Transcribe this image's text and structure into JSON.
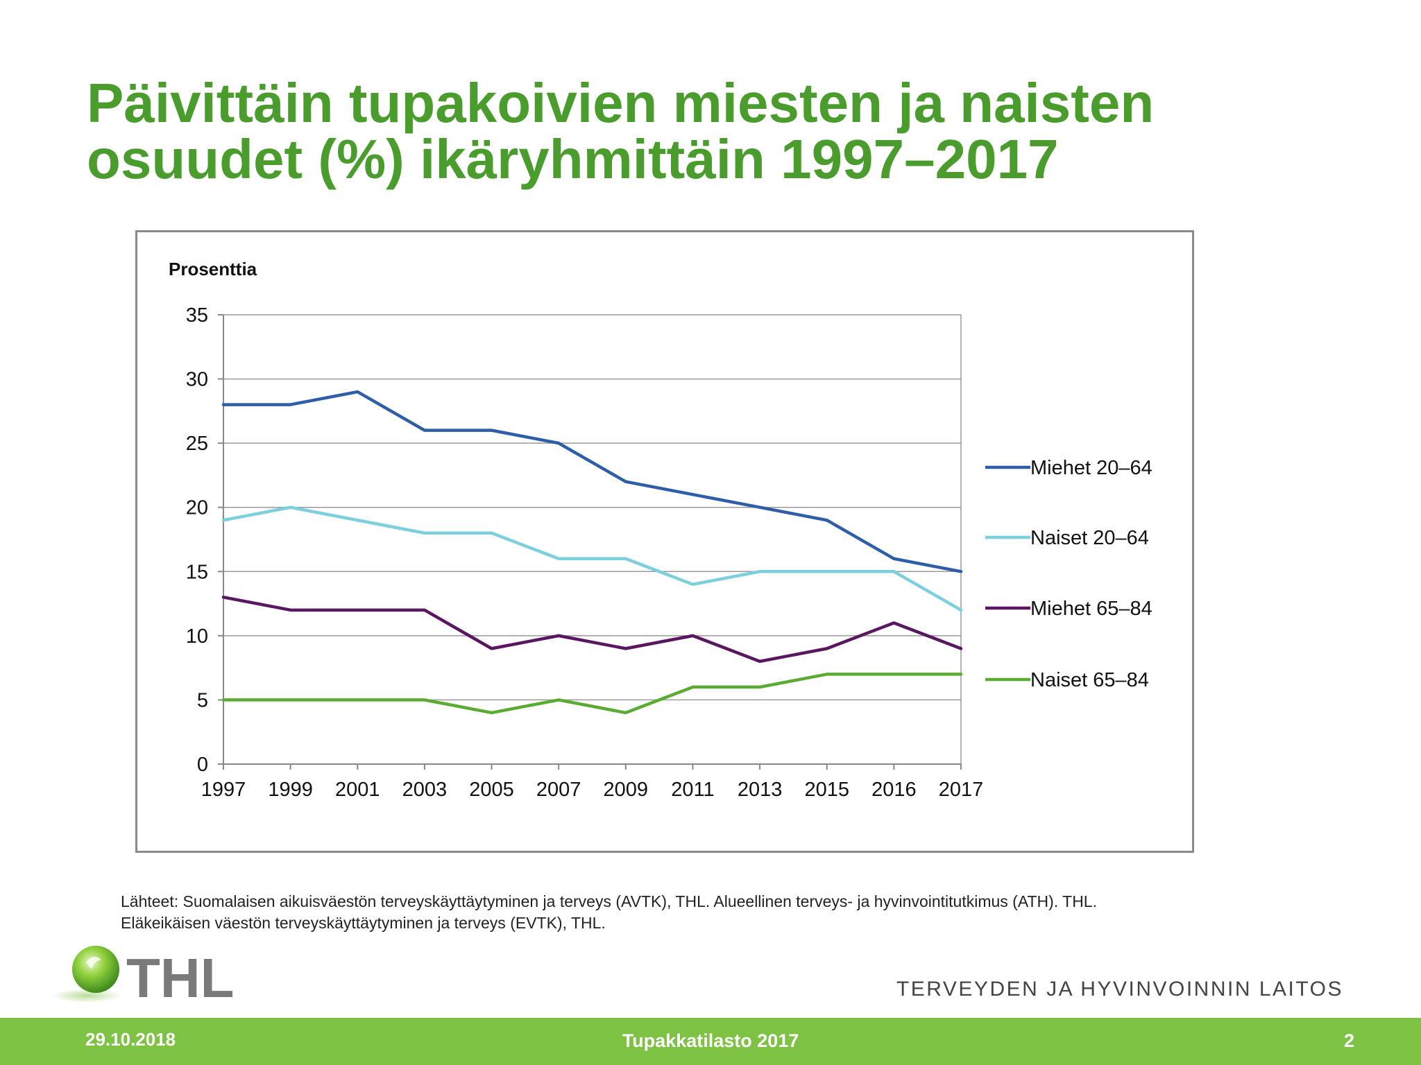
{
  "slide": {
    "title_line1": "Päivittäin tupakoivien miesten ja naisten",
    "title_line2": "osuudet (%) ikäryhmittäin 1997–2017",
    "sources_line1": "Lähteet: Suomalaisen aikuisväestön terveyskäyttäytyminen ja terveys (AVTK), THL. Alueellinen terveys- ja hyvinvointitutkimus (ATH). THL.",
    "sources_line2": "Eläkeikäisen väestön terveyskäyttäytyminen ja terveys (EVTK), THL.",
    "logo_text": "THL",
    "org_name": "TERVEYDEN JA HYVINVOINNIN LAITOS",
    "footer_date": "29.10.2018",
    "footer_title": "Tupakkatilasto 2017",
    "footer_page": "2"
  },
  "colors": {
    "title": "#4a9c2d",
    "footer": "#7dc243"
  },
  "chart_data": {
    "type": "line",
    "ylabel": "Prosenttia",
    "ylim": [
      0,
      35
    ],
    "yticks": [
      0,
      5,
      10,
      15,
      20,
      25,
      30,
      35
    ],
    "grid": true,
    "legend_position": "right",
    "categories": [
      "1997",
      "1999",
      "2001",
      "2003",
      "2005",
      "2007",
      "2009",
      "2011",
      "2013",
      "2015",
      "2016",
      "2017"
    ],
    "series": [
      {
        "name": "Miehet 20–64",
        "color": "#2e5ea8",
        "values": [
          28,
          28,
          29,
          26,
          26,
          25,
          22,
          21,
          20,
          19,
          16,
          15
        ]
      },
      {
        "name": "Naiset 20–64",
        "color": "#7ccfdc",
        "values": [
          19,
          20,
          19,
          18,
          18,
          16,
          16,
          14,
          15,
          15,
          15,
          12
        ]
      },
      {
        "name": "Miehet 65–84",
        "color": "#5a1660",
        "values": [
          13,
          12,
          12,
          12,
          9,
          10,
          9,
          10,
          8,
          9,
          11,
          9
        ]
      },
      {
        "name": "Naiset 65–84",
        "color": "#5aab32",
        "values": [
          5,
          5,
          5,
          5,
          4,
          5,
          4,
          6,
          6,
          7,
          7,
          7
        ]
      }
    ]
  }
}
